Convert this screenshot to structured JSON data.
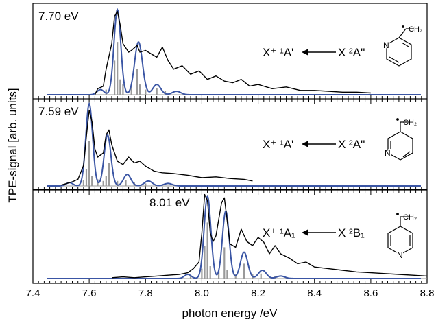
{
  "figure": {
    "ylabel": "TPE-signal [arb. units]",
    "xlabel": "photon energy /eV",
    "x_ticks": [
      "7.4",
      "7.6",
      "7.8",
      "8.0",
      "8.2",
      "8.4",
      "8.6",
      "8.8"
    ]
  },
  "colors": {
    "experiment": "#000000",
    "simulation": "#3a55a4",
    "stick": "#9a9a9a"
  },
  "chart_data": [
    {
      "type": "line",
      "panel": "top",
      "energy_label": "7.70 eV",
      "transition": {
        "final": "X⁺ ¹A'",
        "initial": "X ²A''"
      },
      "molecule": "2-picolyl",
      "xlim": [
        7.4,
        8.8
      ],
      "sticks": [
        [
          7.66,
          0.06
        ],
        [
          7.69,
          0.4
        ],
        [
          7.7,
          0.62
        ],
        [
          7.71,
          0.18
        ],
        [
          7.72,
          0.12
        ],
        [
          7.75,
          0.1
        ],
        [
          7.77,
          0.3
        ],
        [
          7.78,
          0.12
        ],
        [
          7.8,
          0.06
        ],
        [
          7.84,
          0.08
        ],
        [
          7.87,
          0.04
        ]
      ],
      "series": [
        {
          "role": "experiment",
          "x": [
            7.62,
            7.63,
            7.65,
            7.66,
            7.68,
            7.69,
            7.7,
            7.71,
            7.72,
            7.74,
            7.75,
            7.76,
            7.77,
            7.78,
            7.8,
            7.82,
            7.84,
            7.86,
            7.88,
            7.9,
            7.93,
            7.96,
            7.99,
            8.02,
            8.05,
            8.08,
            8.11,
            8.14,
            8.17,
            8.2,
            8.25,
            8.3,
            8.35,
            8.4,
            8.45,
            8.5,
            8.55,
            8.6
          ],
          "y": [
            0.0,
            0.07,
            0.1,
            0.3,
            0.6,
            0.92,
            0.98,
            0.82,
            0.6,
            0.5,
            0.52,
            0.55,
            0.58,
            0.5,
            0.52,
            0.48,
            0.44,
            0.56,
            0.4,
            0.3,
            0.34,
            0.24,
            0.28,
            0.18,
            0.22,
            0.16,
            0.14,
            0.18,
            0.1,
            0.12,
            0.07,
            0.09,
            0.05,
            0.05,
            0.04,
            0.03,
            0.03,
            0.02
          ]
        },
        {
          "role": "simulation",
          "peaks": [
            [
              7.64,
              0.06,
              0.012
            ],
            [
              7.7,
              1.0,
              0.012
            ],
            [
              7.775,
              0.62,
              0.014
            ],
            [
              7.84,
              0.12,
              0.014
            ],
            [
              7.91,
              0.04,
              0.015
            ]
          ]
        }
      ]
    },
    {
      "type": "line",
      "panel": "middle",
      "energy_label": "7.59 eV",
      "transition": {
        "final": "X⁺ ¹A'",
        "initial": "X ²A''"
      },
      "molecule": "3-picolyl",
      "xlim": [
        7.4,
        8.8
      ],
      "sticks": [
        [
          7.58,
          0.07
        ],
        [
          7.59,
          0.2
        ],
        [
          7.6,
          0.55
        ],
        [
          7.61,
          0.12
        ],
        [
          7.63,
          0.08
        ],
        [
          7.65,
          0.06
        ],
        [
          7.66,
          0.12
        ],
        [
          7.67,
          0.28
        ],
        [
          7.7,
          0.06
        ],
        [
          7.73,
          0.07
        ],
        [
          7.76,
          0.04
        ],
        [
          7.8,
          0.03
        ]
      ],
      "series": [
        {
          "role": "experiment",
          "x": [
            7.5,
            7.52,
            7.54,
            7.56,
            7.58,
            7.59,
            7.6,
            7.61,
            7.62,
            7.63,
            7.65,
            7.66,
            7.67,
            7.68,
            7.7,
            7.72,
            7.74,
            7.76,
            7.78,
            7.8,
            7.83,
            7.86,
            7.9,
            7.95,
            8.0,
            8.05,
            8.1,
            8.15,
            8.18
          ],
          "y": [
            0.01,
            0.03,
            0.05,
            0.08,
            0.25,
            0.6,
            0.92,
            0.78,
            0.45,
            0.35,
            0.4,
            0.62,
            0.68,
            0.5,
            0.3,
            0.26,
            0.35,
            0.28,
            0.3,
            0.24,
            0.18,
            0.16,
            0.15,
            0.13,
            0.1,
            0.11,
            0.09,
            0.08,
            0.06
          ]
        },
        {
          "role": "simulation",
          "peaks": [
            [
              7.53,
              0.04,
              0.012
            ],
            [
              7.6,
              1.0,
              0.012
            ],
            [
              7.665,
              0.62,
              0.012
            ],
            [
              7.735,
              0.14,
              0.013
            ],
            [
              7.81,
              0.06,
              0.014
            ],
            [
              7.88,
              0.03,
              0.015
            ]
          ]
        }
      ]
    },
    {
      "type": "line",
      "panel": "bottom",
      "energy_label": "8.01 eV",
      "transition": {
        "final": "X⁺ ¹A₁",
        "initial": "X ²B₁"
      },
      "molecule": "4-picolyl",
      "xlim": [
        7.4,
        8.8
      ],
      "sticks": [
        [
          7.96,
          0.04
        ],
        [
          8.0,
          0.12
        ],
        [
          8.01,
          0.4
        ],
        [
          8.02,
          0.68
        ],
        [
          8.03,
          0.15
        ],
        [
          8.06,
          0.1
        ],
        [
          8.08,
          0.38
        ],
        [
          8.09,
          0.1
        ],
        [
          8.12,
          0.05
        ],
        [
          8.15,
          0.18
        ],
        [
          8.18,
          0.05
        ],
        [
          8.21,
          0.06
        ],
        [
          8.26,
          0.03
        ]
      ],
      "series": [
        {
          "role": "experiment",
          "x": [
            7.68,
            7.72,
            7.76,
            7.8,
            7.84,
            7.88,
            7.92,
            7.95,
            7.97,
            7.99,
            8.0,
            8.01,
            8.02,
            8.03,
            8.04,
            8.05,
            8.06,
            8.07,
            8.08,
            8.09,
            8.1,
            8.12,
            8.14,
            8.16,
            8.18,
            8.2,
            8.22,
            8.24,
            8.26,
            8.28,
            8.31,
            8.34,
            8.37,
            8.4,
            8.45,
            8.5,
            8.55,
            8.6,
            8.65,
            8.7,
            8.75,
            8.8
          ],
          "y": [
            0.01,
            0.02,
            0.01,
            0.02,
            0.03,
            0.04,
            0.05,
            0.07,
            0.12,
            0.2,
            0.55,
            1.02,
            0.95,
            0.55,
            0.45,
            0.52,
            0.72,
            0.92,
            0.98,
            0.7,
            0.42,
            0.38,
            0.6,
            0.45,
            0.4,
            0.5,
            0.44,
            0.3,
            0.4,
            0.3,
            0.25,
            0.18,
            0.2,
            0.14,
            0.12,
            0.1,
            0.08,
            0.07,
            0.06,
            0.05,
            0.04,
            0.03
          ]
        },
        {
          "role": "simulation",
          "peaks": [
            [
              7.95,
              0.05,
              0.012
            ],
            [
              8.02,
              1.0,
              0.012
            ],
            [
              8.085,
              0.82,
              0.012
            ],
            [
              8.15,
              0.32,
              0.013
            ],
            [
              8.215,
              0.1,
              0.014
            ],
            [
              8.28,
              0.03,
              0.015
            ]
          ]
        }
      ]
    }
  ]
}
